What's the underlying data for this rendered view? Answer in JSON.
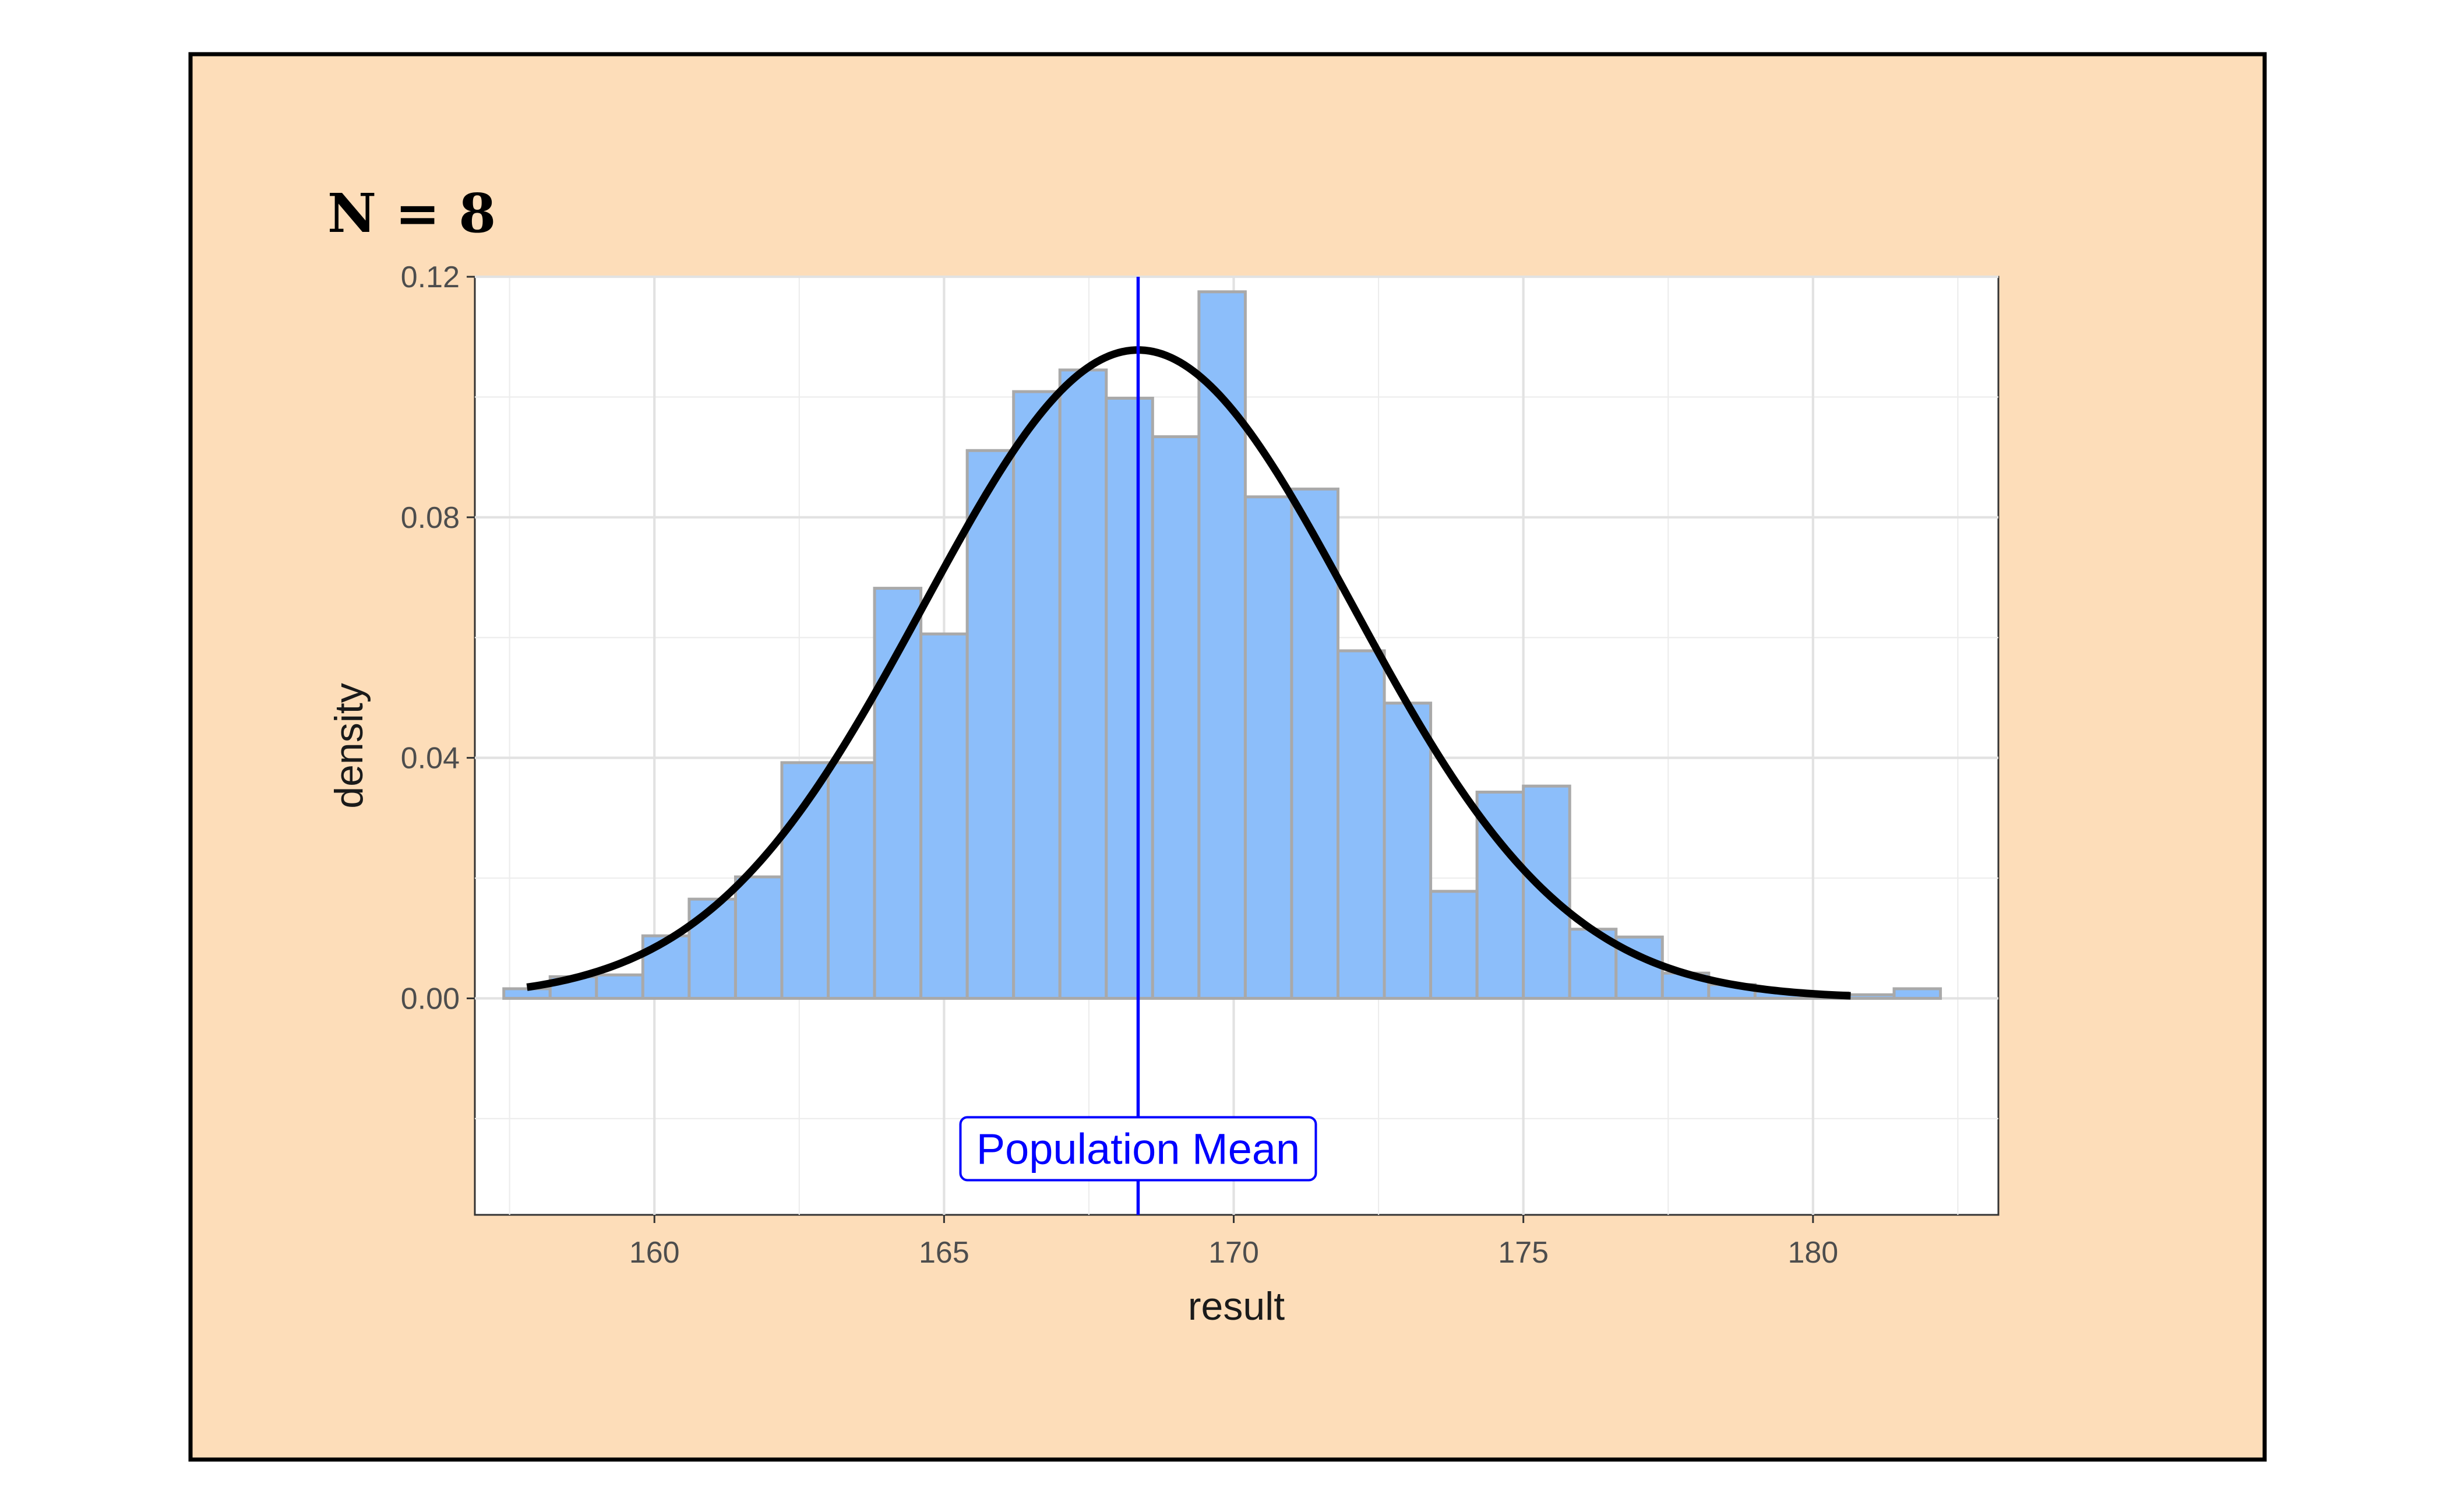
{
  "chart_data": {
    "type": "bar",
    "title": "N = 8",
    "xlabel": "result",
    "ylabel": "density",
    "xlim": [
      156.9,
      183.2
    ],
    "ylim": [
      -0.036,
      0.12
    ],
    "x_ticks": [
      160,
      165,
      170,
      175,
      180
    ],
    "x_tick_labels": [
      "160",
      "165",
      "170",
      "175",
      "180"
    ],
    "y_ticks": [
      0.0,
      0.04,
      0.08,
      0.12
    ],
    "y_tick_labels": [
      "0.00",
      "0.04",
      "0.08",
      "0.12"
    ],
    "grid": true,
    "bin_width": 0.8,
    "bins_start": 157.4,
    "bar_values": [
      0.0016,
      0.0036,
      0.0039,
      0.0104,
      0.0165,
      0.0202,
      0.0392,
      0.0392,
      0.0682,
      0.0606,
      0.0911,
      0.1009,
      0.1045,
      0.0998,
      0.0934,
      0.1175,
      0.0834,
      0.0847,
      0.0578,
      0.0491,
      0.0178,
      0.0343,
      0.0353,
      0.0115,
      0.0102,
      0.0042,
      0.0023,
      0.0012,
      0.0009,
      0.0006,
      0.0016
    ],
    "density_curve": {
      "mean": 168.35,
      "sd": 3.7,
      "x_range": [
        157.8,
        180.65
      ]
    },
    "reference_line": {
      "x": 168.35,
      "label": "Population Mean",
      "color": "#0000FF"
    },
    "colors": {
      "bar_fill": "#8CBEFA",
      "bar_outline": "#A9A9A9",
      "panel_background": "#FDDDB9",
      "curve": "#000000"
    }
  }
}
